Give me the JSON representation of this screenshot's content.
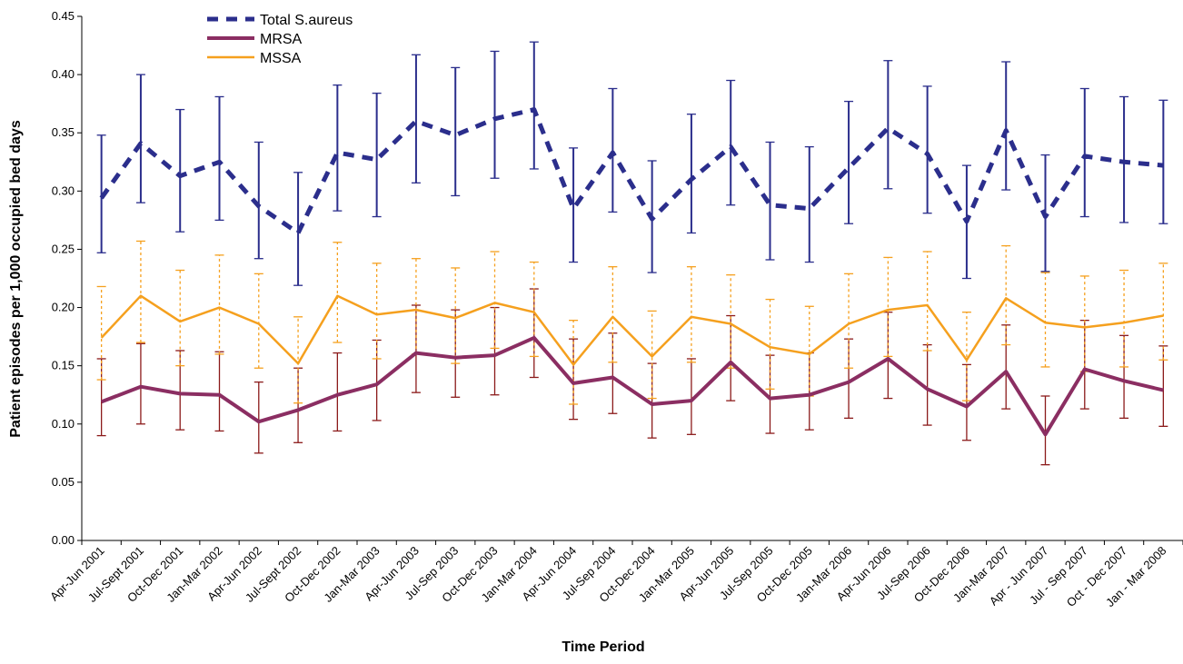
{
  "chart_data": {
    "type": "line",
    "title": "",
    "xlabel": "Time Period",
    "ylabel": "Patient episodes per 1,000 occupied bed days",
    "ylim": [
      0,
      0.45
    ],
    "yticks": [
      "0.00",
      "0.05",
      "0.10",
      "0.15",
      "0.20",
      "0.25",
      "0.30",
      "0.35",
      "0.40",
      "0.45"
    ],
    "grid": false,
    "legend_position": "top-left",
    "categories": [
      "Apr-Jun 2001",
      "Jul-Sept 2001",
      "Oct-Dec 2001",
      "Jan-Mar 2002",
      "Apr-Jun 2002",
      "Jul-Sept 2002",
      "Oct-Dec 2002",
      "Jan-Mar 2003",
      "Apr-Jun 2003",
      "Jul-Sep 2003",
      "Oct-Dec 2003",
      "Jan-Mar 2004",
      "Apr-Jun 2004",
      "Jul-Sep 2004",
      "Oct-Dec 2004",
      "Jan-Mar 2005",
      "Apr-Jun 2005",
      "Jul-Sep 2005",
      "Oct-Dec 2005",
      "Jan-Mar 2006",
      "Apr-Jun 2006",
      "Jul-Sep 2006",
      "Oct-Dec 2006",
      "Jan-Mar 2007",
      "Apr - Jun 2007",
      "Jul - Sep 2007",
      "Oct - Dec 2007",
      "Jan - Mar 2008"
    ],
    "series": [
      {
        "name": "Total S.aureus",
        "color": "#2b2e8c",
        "values": [
          0.294,
          0.341,
          0.313,
          0.325,
          0.287,
          0.264,
          0.333,
          0.327,
          0.36,
          0.348,
          0.362,
          0.37,
          0.285,
          0.333,
          0.276,
          0.31,
          0.338,
          0.288,
          0.285,
          0.32,
          0.354,
          0.332,
          0.274,
          0.352,
          0.278,
          0.33,
          0.325,
          0.322
        ],
        "lower": [
          0.247,
          0.29,
          0.265,
          0.275,
          0.242,
          0.219,
          0.283,
          0.278,
          0.307,
          0.296,
          0.311,
          0.319,
          0.239,
          0.282,
          0.23,
          0.264,
          0.288,
          0.241,
          0.239,
          0.272,
          0.302,
          0.281,
          0.225,
          0.301,
          0.231,
          0.278,
          0.273,
          0.272
        ],
        "upper": [
          0.348,
          0.4,
          0.37,
          0.381,
          0.342,
          0.316,
          0.391,
          0.384,
          0.417,
          0.406,
          0.42,
          0.428,
          0.337,
          0.388,
          0.326,
          0.366,
          0.395,
          0.342,
          0.338,
          0.377,
          0.412,
          0.39,
          0.322,
          0.411,
          0.331,
          0.388,
          0.381,
          0.378
        ]
      },
      {
        "name": "MRSA",
        "color": "#8b2e62",
        "values": [
          0.119,
          0.132,
          0.126,
          0.125,
          0.102,
          0.112,
          0.125,
          0.134,
          0.161,
          0.157,
          0.159,
          0.174,
          0.135,
          0.14,
          0.117,
          0.12,
          0.153,
          0.122,
          0.125,
          0.136,
          0.156,
          0.13,
          0.115,
          0.145,
          0.091,
          0.147,
          0.137,
          0.129
        ],
        "lower": [
          0.09,
          0.1,
          0.095,
          0.094,
          0.075,
          0.084,
          0.094,
          0.103,
          0.127,
          0.123,
          0.125,
          0.14,
          0.104,
          0.109,
          0.088,
          0.091,
          0.12,
          0.092,
          0.095,
          0.105,
          0.122,
          0.099,
          0.086,
          0.113,
          0.065,
          0.113,
          0.105,
          0.098
        ],
        "upper": [
          0.156,
          0.169,
          0.163,
          0.162,
          0.136,
          0.148,
          0.161,
          0.172,
          0.202,
          0.198,
          0.2,
          0.216,
          0.173,
          0.178,
          0.152,
          0.156,
          0.193,
          0.159,
          0.161,
          0.173,
          0.196,
          0.168,
          0.151,
          0.185,
          0.124,
          0.189,
          0.176,
          0.167
        ]
      },
      {
        "name": "MSSA",
        "color": "#f5a01e",
        "values": [
          0.174,
          0.21,
          0.188,
          0.2,
          0.186,
          0.152,
          0.21,
          0.194,
          0.198,
          0.191,
          0.204,
          0.196,
          0.151,
          0.192,
          0.158,
          0.192,
          0.186,
          0.166,
          0.16,
          0.186,
          0.198,
          0.202,
          0.155,
          0.208,
          0.187,
          0.183,
          0.187,
          0.193
        ],
        "lower": [
          0.138,
          0.17,
          0.15,
          0.16,
          0.148,
          0.118,
          0.17,
          0.156,
          0.16,
          0.152,
          0.165,
          0.158,
          0.117,
          0.153,
          0.122,
          0.153,
          0.148,
          0.13,
          0.124,
          0.148,
          0.158,
          0.163,
          0.12,
          0.168,
          0.149,
          0.145,
          0.149,
          0.155
        ],
        "upper": [
          0.218,
          0.257,
          0.232,
          0.245,
          0.229,
          0.192,
          0.256,
          0.238,
          0.242,
          0.234,
          0.248,
          0.239,
          0.189,
          0.235,
          0.197,
          0.235,
          0.228,
          0.207,
          0.201,
          0.229,
          0.243,
          0.248,
          0.196,
          0.253,
          0.23,
          0.227,
          0.232,
          0.238
        ]
      }
    ]
  }
}
